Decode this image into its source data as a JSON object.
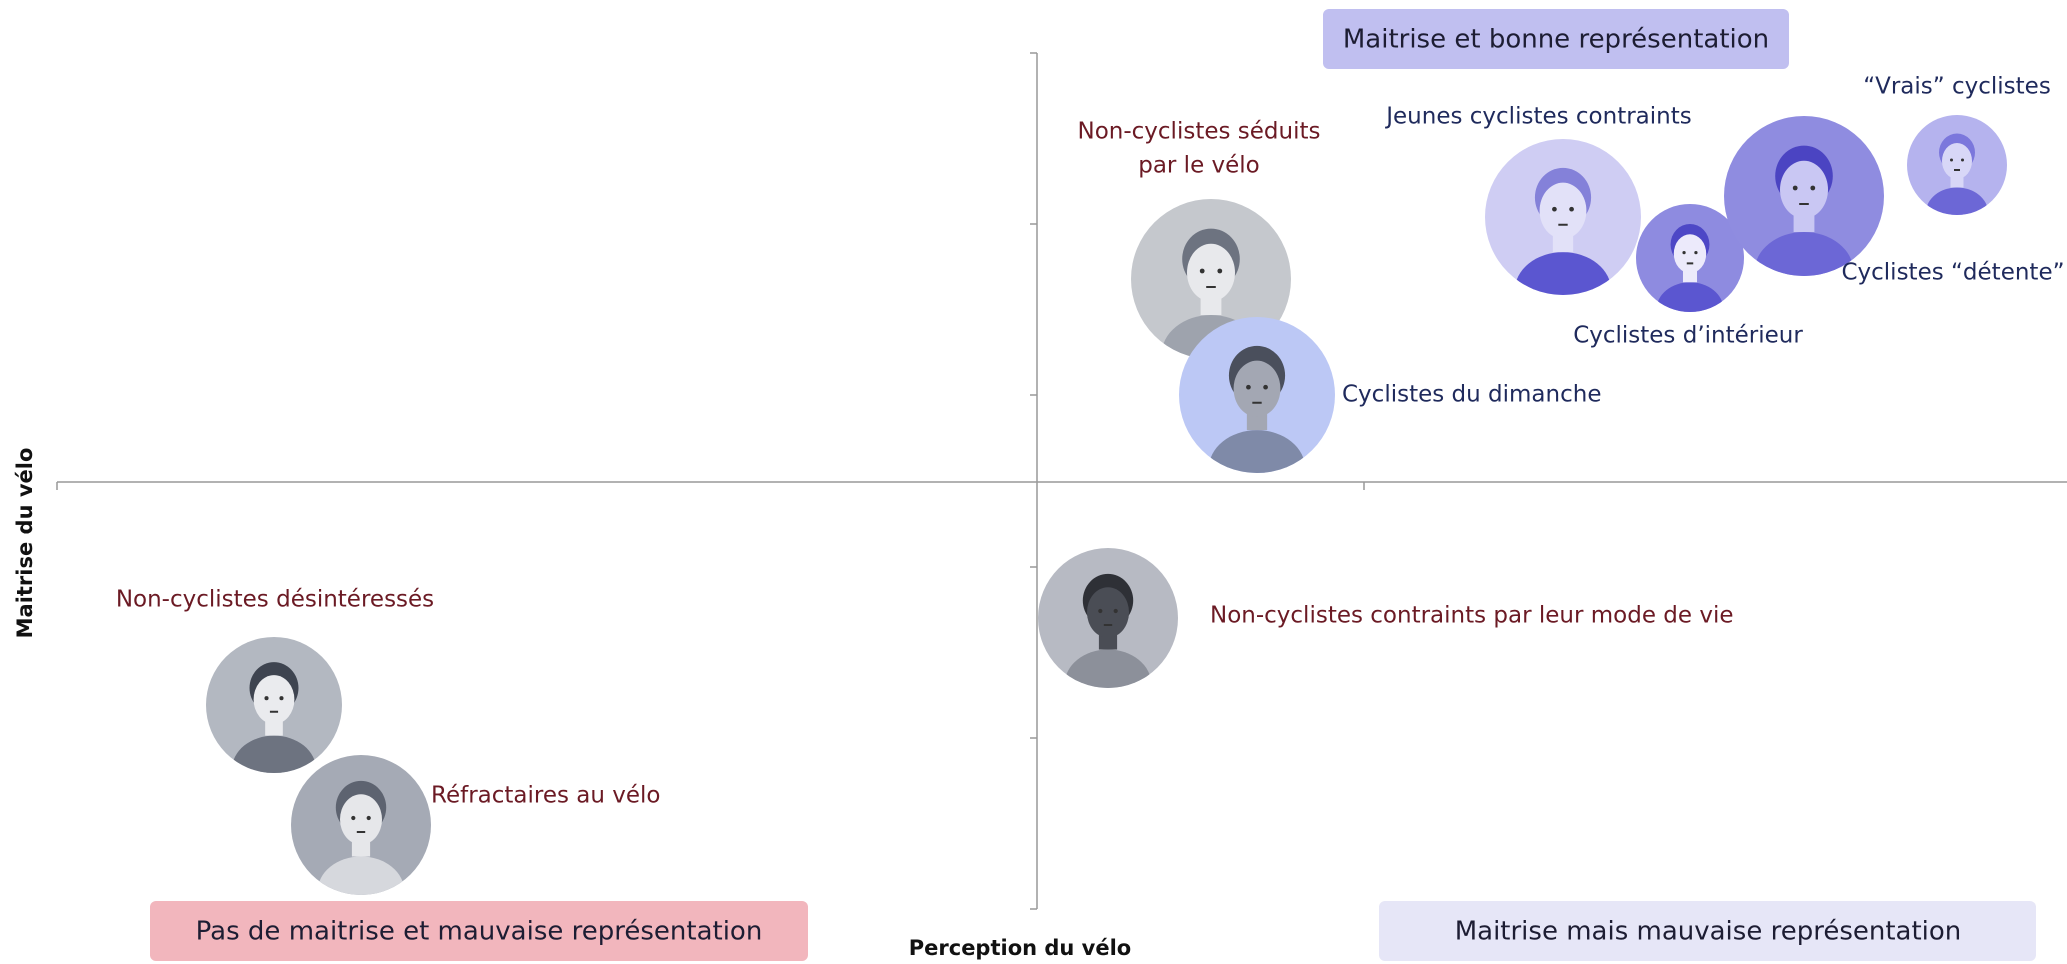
{
  "quadrants": {
    "top_right": "Maitrise et bonne représentation",
    "bottom_left": "Pas de maitrise et mauvaise représentation",
    "bottom_right": "Maitrise mais mauvaise représentation"
  },
  "axes": {
    "x_label": "Perception du vélo",
    "y_label": "Maitrise du vélo"
  },
  "personas": [
    {
      "lines": [
        "Non-cyclistes séduits",
        "par le vélo"
      ]
    },
    {
      "lines": [
        "Cyclistes du dimanche"
      ]
    },
    {
      "lines": [
        "Jeunes cyclistes contraints"
      ]
    },
    {
      "lines": [
        "Cyclistes d’intérieur"
      ]
    },
    {
      "lines": [
        "Cyclistes “détente”"
      ]
    },
    {
      "lines": [
        "“Vrais” cyclistes"
      ]
    },
    {
      "lines": [
        "Non-cyclistes désintéressés"
      ]
    },
    {
      "lines": [
        "Réfractaires au vélo"
      ]
    },
    {
      "lines": [
        "Non-cyclistes contraints par leur mode de vie"
      ]
    }
  ]
}
